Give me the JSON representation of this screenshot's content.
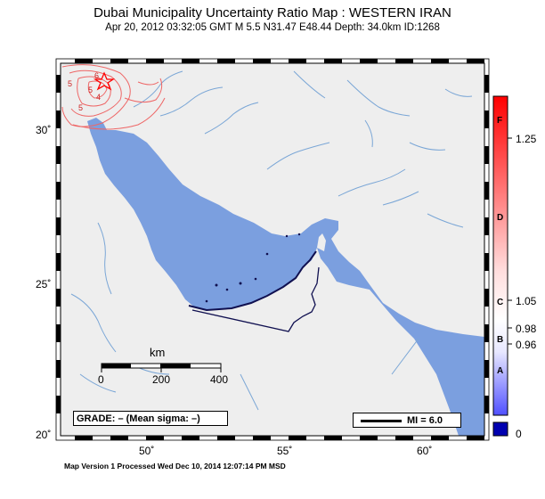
{
  "header": {
    "title": "Dubai Municipality Uncertainty Ratio Map : WESTERN IRAN",
    "subtitle": "Apr 20, 2012 03:32:05 GMT   M 5.5   N31.47 E48.44   Depth: 34.0km   ID:1268"
  },
  "map": {
    "lat_labels": [
      "30˚",
      "25˚",
      "20˚"
    ],
    "lon_labels": [
      "50˚",
      "55˚",
      "60˚"
    ],
    "contour_labels": [
      "5",
      "6",
      "5",
      "4",
      "5"
    ],
    "colors": {
      "sea": "#7b9fdf",
      "land": "#eeeeee",
      "river": "#7aa6d6",
      "contour": "#ee6666",
      "border": "#101050",
      "epicenter": "#ff0000"
    }
  },
  "scale_bar": {
    "unit": "km",
    "ticks": [
      "0",
      "200",
      "400"
    ]
  },
  "grade_text": "GRADE: – (Mean sigma: –)",
  "mi_legend": {
    "label": "MI = 6.0"
  },
  "colorbar": {
    "letters": [
      "F",
      "D",
      "C",
      "B",
      "A"
    ],
    "values": [
      "1.25",
      "1.05",
      "0.98",
      "0.96",
      "0"
    ],
    "colors": {
      "top": "#ff0000",
      "mid": "#ffffff",
      "bottom": "#5050ff",
      "base": "#0000b0"
    }
  },
  "footer": "Map Version 1 Processed Wed Dec 10, 2014 12:07:14 PM MSD"
}
